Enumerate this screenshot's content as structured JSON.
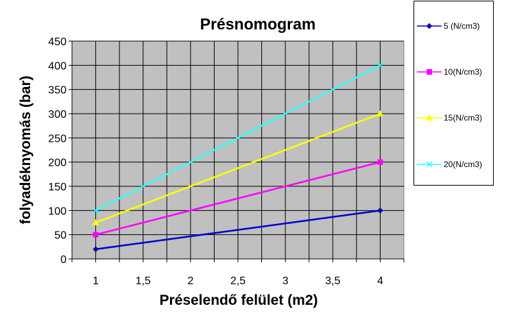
{
  "chart_data": {
    "type": "line",
    "title": "Présnomogram",
    "xlabel": "Préselendő felület (m2)",
    "ylabel": "folyadéknyomás (bar)",
    "x_ticks": [
      "1",
      "1,5",
      "2",
      "2,5",
      "3",
      "3,5",
      "4"
    ],
    "y_ticks": [
      "0",
      "50",
      "100",
      "150",
      "200",
      "250",
      "300",
      "350",
      "400",
      "450"
    ],
    "xlim": [
      0.75,
      4.25
    ],
    "ylim": [
      0,
      450
    ],
    "grid": true,
    "plot_background": "#c0c0c0",
    "legend_position": "right",
    "series": [
      {
        "name": "5 (N/cm3)",
        "x": [
          1,
          4
        ],
        "values": [
          20,
          100
        ],
        "color": "#0000cc",
        "marker": "diamond"
      },
      {
        "name": "10(N/cm3)",
        "x": [
          1,
          4
        ],
        "values": [
          50,
          200
        ],
        "color": "#ff00ff",
        "marker": "square"
      },
      {
        "name": "15(N/cm3)",
        "x": [
          1,
          4
        ],
        "values": [
          75,
          300
        ],
        "color": "#ffff00",
        "marker": "triangle"
      },
      {
        "name": "20(N/cm3)",
        "x": [
          1,
          4
        ],
        "values": [
          100,
          400
        ],
        "color": "#33ffff",
        "marker": "x"
      }
    ]
  }
}
